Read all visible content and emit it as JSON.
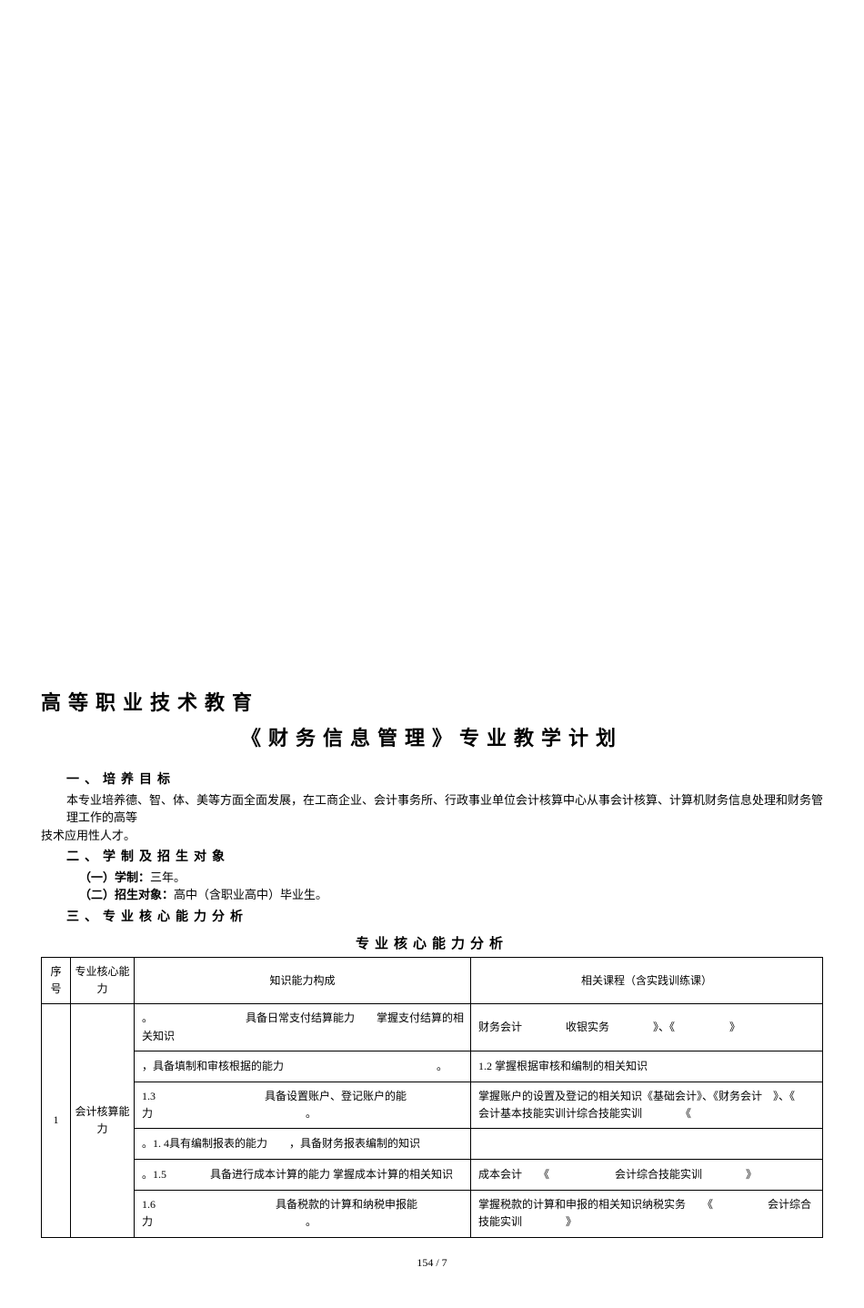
{
  "title_line1": "高等职业技术教育",
  "title_line2": "《财务信息管理》专业教学计划",
  "section1": {
    "heading": "一、培养目标",
    "body1": "本专业培养德、智、体、美等方面全面发展，在工商企业、会计事务所、行政事业单位会计核算中心从事会计核算、计算机财务信息处理和财务管理工作的高等",
    "body2": "技术应用性人才。"
  },
  "section2": {
    "heading": "二、学制及招生对象",
    "item1_label": "（一）学制：",
    "item1_text": "三年。",
    "item2_label": "（二）招生对象：",
    "item2_text": "高中（含职业高中）毕业生。"
  },
  "section3": {
    "heading": "三、专业核心能力分析"
  },
  "table": {
    "caption": "专业核心能力分析",
    "headers": {
      "seq": "序号",
      "core": "专业核心能力",
      "knowledge": "知识能力构成",
      "course": "相关课程（含实践训练课）"
    },
    "group_seq": "1",
    "group_core": "会计核算能力",
    "rows": [
      {
        "knowledge": "。　　　　　　　　　具备日常支付结算能力　　掌握支付结算的相关知识",
        "course": "财务会计　　　　收银实务　　　　》、《　　　　　》"
      },
      {
        "knowledge": "，具备填制和审核根据的能力　　　　　　　　　　　　　　。",
        "course": "1.2 掌握根据审核和编制的相关知识"
      },
      {
        "knowledge": "1.3　　　　　　　　　　具备设置账户、登记账户的能力　　　　　　　　　　　　　　。",
        "course": "掌握账户的设置及登记的相关知识《基础会计》、《财务会计　》、《　　　　会计基本技能实训计综合技能实训　　　　《"
      },
      {
        "knowledge": "。1. 4具有编制报表的能力　　，具备财务报表编制的知识",
        "course": ""
      },
      {
        "knowledge": "。1.5　　　　具备进行成本计算的能力  掌握成本计算的相关知识",
        "course": "成本会计　　《　　　　　　会计综合技能实训　　　　》"
      },
      {
        "knowledge": "1.6　　　　　　　　　　　具备税款的计算和纳税申报能力　　　　　　　　　　　　　　。",
        "course": "掌握税款的计算和申报的相关知识纳税实务　　《　　　　　会计综合技能实训　　　　》"
      }
    ]
  },
  "footer": "154 / 7"
}
